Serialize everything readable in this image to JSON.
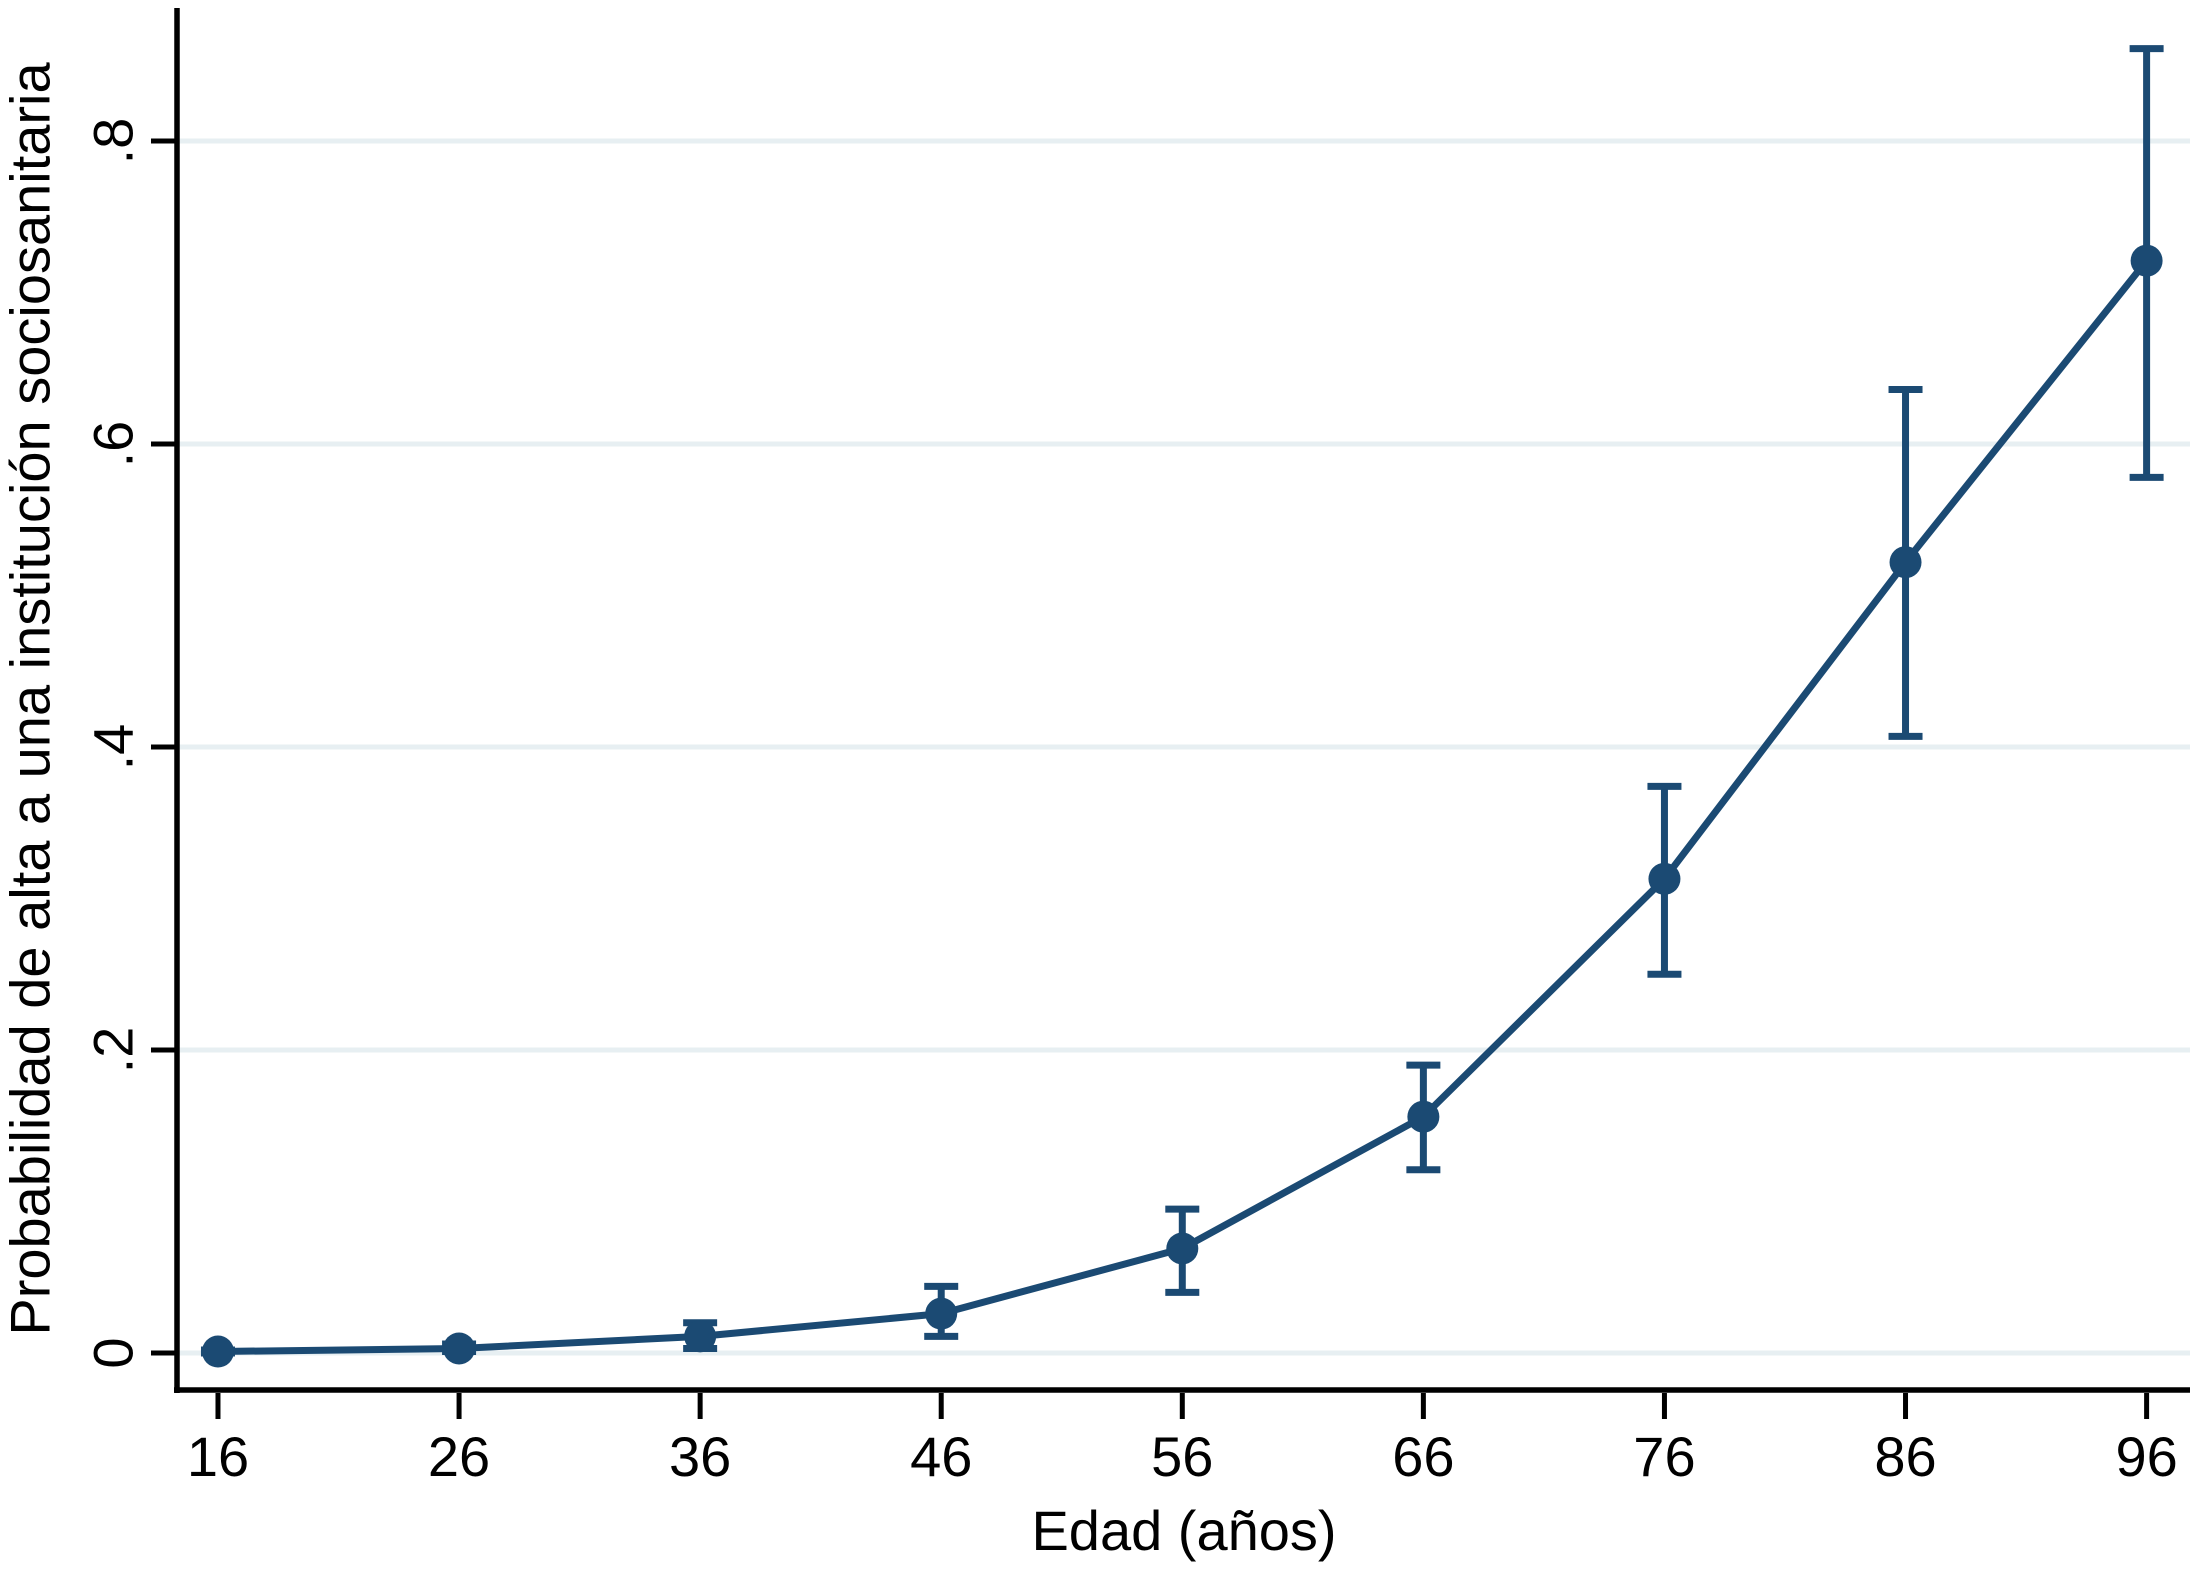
{
  "figure": {
    "background": "#ffffff",
    "accent_color": "#1b4a73",
    "grid_color": "#e7eff2",
    "axis_color": "#000000",
    "text_color": "#000000"
  },
  "chart_data": {
    "type": "line",
    "title": "",
    "xlabel": "Edad (años)",
    "ylabel": "Probabilidad de alta a una institución sociosanitaria",
    "x": [
      16,
      26,
      36,
      46,
      56,
      66,
      76,
      86,
      96
    ],
    "xtick_labels": [
      "16",
      "26",
      "36",
      "46",
      "56",
      "66",
      "76",
      "86",
      "96"
    ],
    "yticks": [
      0,
      0.2,
      0.4,
      0.6,
      0.8
    ],
    "ytick_labels": [
      "0",
      ".2",
      ".4",
      ".6",
      ".8"
    ],
    "xlim": [
      14.3,
      97.8
    ],
    "ylim": [
      -0.0244,
      0.8878
    ],
    "grid": true,
    "legend": false,
    "series": [
      {
        "marker": "circle",
        "color": "#1b4a73",
        "values": [
          0.001,
          0.003,
          0.011,
          0.026,
          0.069,
          0.156,
          0.313,
          0.522,
          0.721
        ],
        "ci_low": [
          0.0,
          0.001,
          0.003,
          0.011,
          0.04,
          0.121,
          0.25,
          0.407,
          0.578
        ],
        "ci_high": [
          0.002,
          0.006,
          0.02,
          0.044,
          0.095,
          0.19,
          0.374,
          0.636,
          0.861
        ]
      }
    ]
  }
}
